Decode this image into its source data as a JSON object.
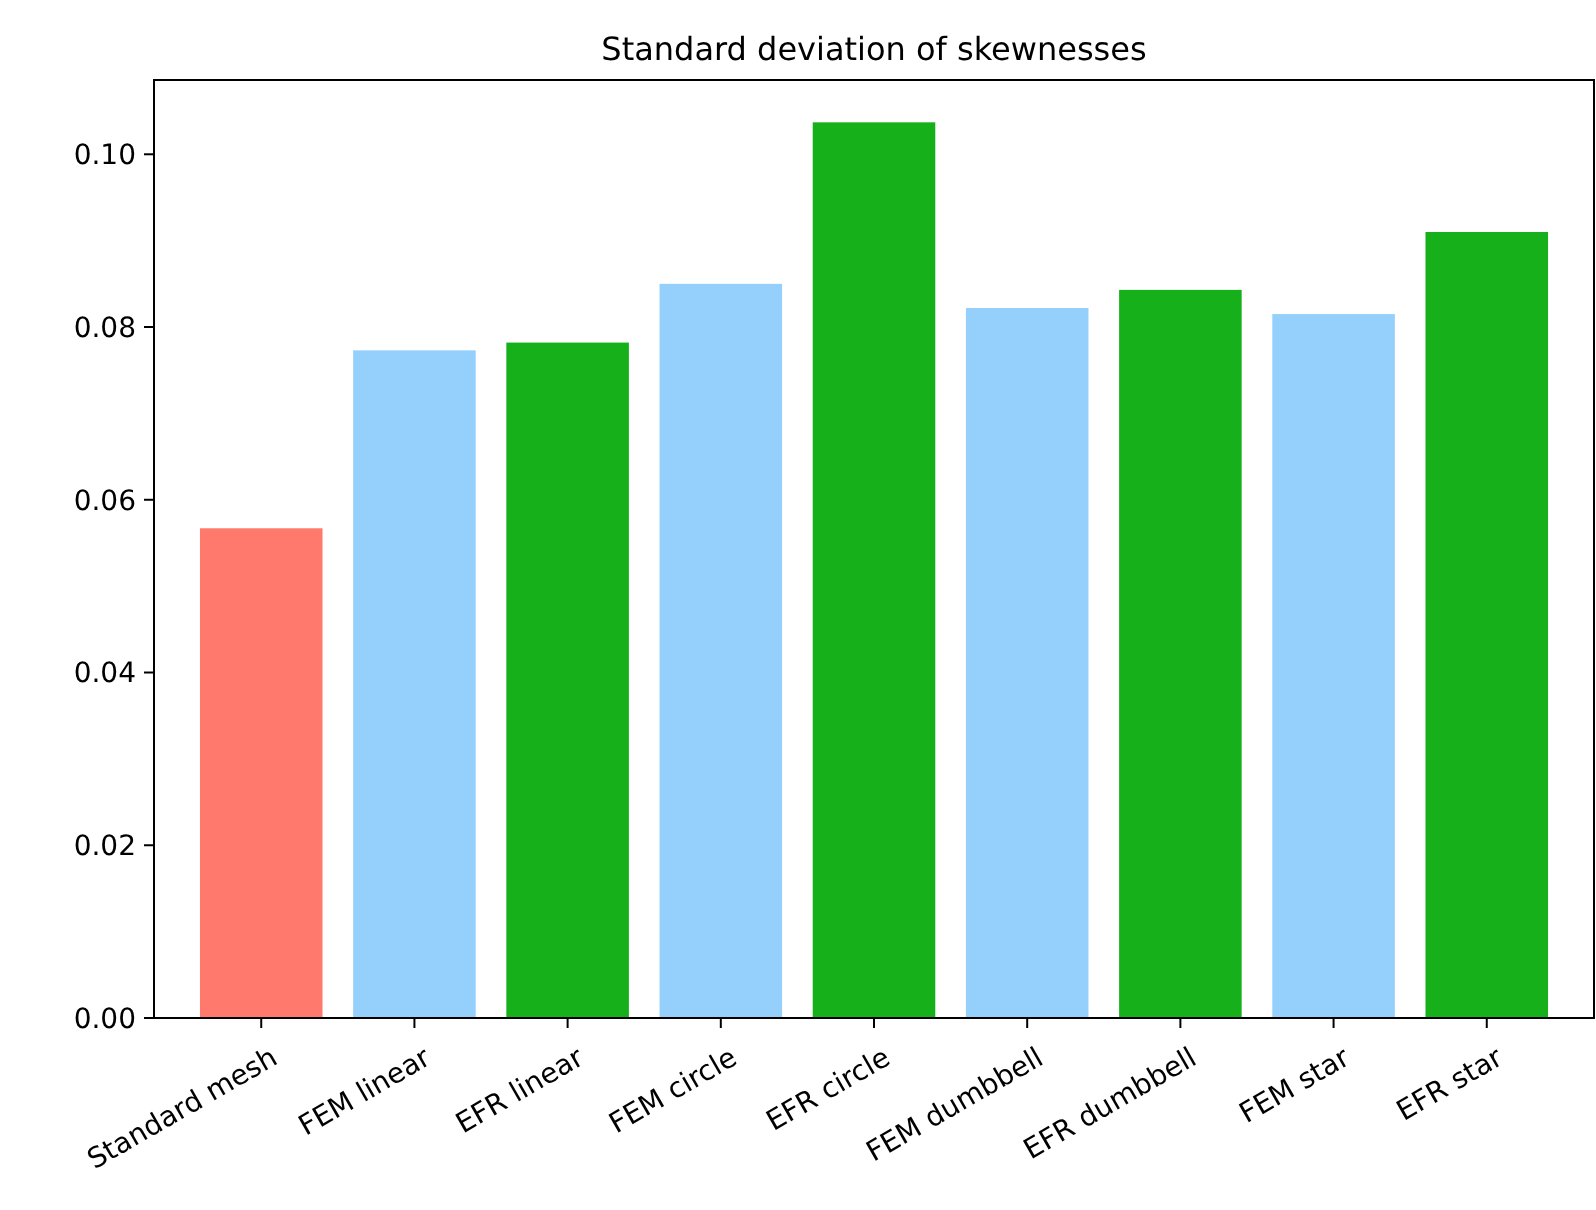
{
  "chart_data": {
    "type": "bar",
    "title": "Standard deviation of skewnesses",
    "categories": [
      "Standard mesh",
      "FEM linear",
      "EFR linear",
      "FEM circle",
      "EFR circle",
      "FEM dumbbell",
      "EFR dumbbell",
      "FEM star",
      "EFR star"
    ],
    "values": [
      0.0567,
      0.0773,
      0.0782,
      0.085,
      0.1037,
      0.0822,
      0.0843,
      0.0815,
      0.091
    ],
    "colors": [
      "#ff796c",
      "#95d0fc",
      "#15b01a",
      "#95d0fc",
      "#15b01a",
      "#95d0fc",
      "#15b01a",
      "#95d0fc",
      "#15b01a"
    ],
    "ylim": [
      0,
      0.1086
    ],
    "yticks": [
      {
        "value": 0,
        "label": "0.00"
      },
      {
        "value": 0.02,
        "label": "0.02"
      },
      {
        "value": 0.04,
        "label": "0.04"
      },
      {
        "value": 0.06,
        "label": "0.06"
      },
      {
        "value": 0.08,
        "label": "0.08"
      },
      {
        "value": 0.1,
        "label": "0.10"
      }
    ],
    "grid": false
  }
}
